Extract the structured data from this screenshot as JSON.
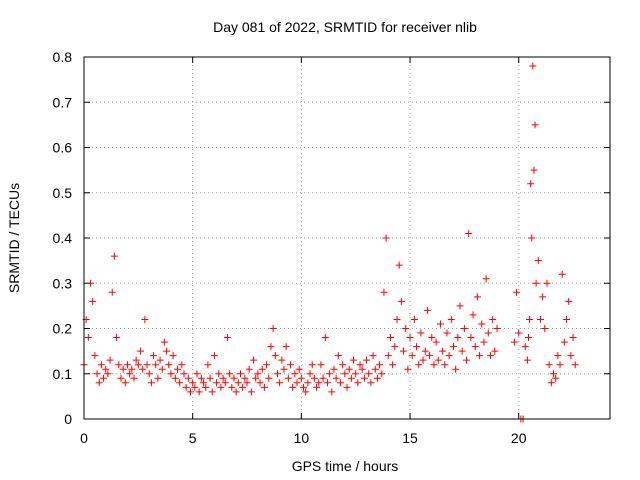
{
  "chart_data": {
    "type": "scatter",
    "title": "Day 081 of 2022, SRMTID for receiver nlib",
    "xlabel": "GPS time / hours",
    "ylabel": "SRMTID / TECUs",
    "xlim": [
      0,
      24.2
    ],
    "ylim": [
      0,
      0.8
    ],
    "x_ticks": [
      0,
      5,
      10,
      15,
      20
    ],
    "y_ticks": [
      0,
      0.1,
      0.2,
      0.3,
      0.4,
      0.5,
      0.6,
      0.7,
      0.8
    ],
    "x_tick_labels": [
      "0",
      "5",
      "10",
      "15",
      "20"
    ],
    "y_tick_labels": [
      "0",
      "0.1",
      "0.2",
      "0.3",
      "0.4",
      "0.5",
      "0.6",
      "0.7",
      "0.8"
    ],
    "grid": true,
    "marker": "+",
    "color": "#ff0000",
    "series": [
      {
        "name": "SRMTID",
        "x": [
          0.0,
          0.1,
          0.2,
          0.3,
          0.4,
          0.5,
          0.6,
          0.7,
          0.8,
          0.9,
          1.0,
          1.1,
          1.2,
          1.3,
          1.4,
          1.5,
          1.6,
          1.7,
          1.8,
          1.9,
          2.0,
          2.1,
          2.2,
          2.3,
          2.4,
          2.5,
          2.6,
          2.7,
          2.8,
          2.9,
          3.0,
          3.1,
          3.2,
          3.3,
          3.4,
          3.5,
          3.6,
          3.7,
          3.8,
          3.9,
          4.0,
          4.1,
          4.2,
          4.3,
          4.4,
          4.5,
          4.6,
          4.7,
          4.8,
          4.9,
          5.0,
          5.1,
          5.2,
          5.3,
          5.4,
          5.5,
          5.6,
          5.7,
          5.8,
          5.9,
          6.0,
          6.1,
          6.2,
          6.3,
          6.4,
          6.5,
          6.6,
          6.7,
          6.8,
          6.9,
          7.0,
          7.1,
          7.2,
          7.3,
          7.4,
          7.5,
          7.6,
          7.7,
          7.8,
          7.9,
          8.0,
          8.1,
          8.2,
          8.3,
          8.4,
          8.5,
          8.6,
          8.7,
          8.8,
          8.9,
          9.0,
          9.1,
          9.2,
          9.3,
          9.4,
          9.5,
          9.6,
          9.7,
          9.8,
          9.9,
          10.0,
          10.1,
          10.2,
          10.3,
          10.4,
          10.5,
          10.6,
          10.7,
          10.8,
          10.9,
          11.0,
          11.1,
          11.2,
          11.3,
          11.4,
          11.5,
          11.6,
          11.7,
          11.8,
          11.9,
          12.0,
          12.1,
          12.2,
          12.3,
          12.4,
          12.5,
          12.6,
          12.7,
          12.8,
          12.9,
          13.0,
          13.1,
          13.2,
          13.3,
          13.4,
          13.5,
          13.6,
          13.7,
          13.8,
          13.9,
          14.0,
          14.1,
          14.2,
          14.3,
          14.4,
          14.5,
          14.6,
          14.7,
          14.8,
          14.9,
          15.0,
          15.1,
          15.2,
          15.3,
          15.4,
          15.5,
          15.6,
          15.7,
          15.8,
          15.9,
          16.0,
          16.1,
          16.2,
          16.3,
          16.4,
          16.5,
          16.6,
          16.7,
          16.8,
          16.9,
          17.0,
          17.1,
          17.2,
          17.3,
          17.4,
          17.5,
          17.6,
          17.7,
          17.8,
          17.9,
          18.0,
          18.1,
          18.2,
          18.3,
          18.4,
          18.5,
          18.6,
          18.7,
          18.8,
          18.9,
          19.0,
          19.8,
          19.9,
          20.0,
          20.1,
          20.2,
          20.3,
          20.4,
          20.45,
          20.5,
          20.55,
          20.6,
          20.65,
          20.7,
          20.75,
          20.8,
          20.9,
          21.0,
          21.1,
          21.2,
          21.3,
          21.4,
          21.5,
          21.6,
          21.7,
          21.8,
          21.9,
          22.0,
          22.1,
          22.2,
          22.3,
          22.4,
          22.5,
          22.6
        ],
        "y": [
          0.12,
          0.22,
          0.18,
          0.3,
          0.26,
          0.14,
          0.1,
          0.08,
          0.12,
          0.09,
          0.11,
          0.1,
          0.13,
          0.28,
          0.36,
          0.18,
          0.12,
          0.09,
          0.11,
          0.08,
          0.12,
          0.1,
          0.11,
          0.09,
          0.13,
          0.12,
          0.15,
          0.11,
          0.22,
          0.12,
          0.1,
          0.08,
          0.14,
          0.12,
          0.09,
          0.13,
          0.11,
          0.17,
          0.15,
          0.12,
          0.1,
          0.14,
          0.09,
          0.11,
          0.08,
          0.12,
          0.1,
          0.07,
          0.09,
          0.06,
          0.08,
          0.07,
          0.1,
          0.06,
          0.09,
          0.08,
          0.07,
          0.12,
          0.09,
          0.06,
          0.14,
          0.08,
          0.1,
          0.07,
          0.09,
          0.08,
          0.18,
          0.1,
          0.07,
          0.09,
          0.06,
          0.08,
          0.1,
          0.07,
          0.09,
          0.08,
          0.11,
          0.06,
          0.13,
          0.09,
          0.1,
          0.08,
          0.11,
          0.07,
          0.12,
          0.09,
          0.16,
          0.2,
          0.14,
          0.1,
          0.08,
          0.13,
          0.11,
          0.16,
          0.09,
          0.12,
          0.07,
          0.1,
          0.08,
          0.11,
          0.09,
          0.07,
          0.06,
          0.08,
          0.1,
          0.12,
          0.09,
          0.07,
          0.08,
          0.12,
          0.09,
          0.18,
          0.08,
          0.1,
          0.06,
          0.11,
          0.09,
          0.14,
          0.08,
          0.12,
          0.1,
          0.07,
          0.11,
          0.09,
          0.13,
          0.1,
          0.08,
          0.12,
          0.11,
          0.09,
          0.13,
          0.1,
          0.08,
          0.14,
          0.11,
          0.09,
          0.12,
          0.1,
          0.28,
          0.4,
          0.14,
          0.18,
          0.12,
          0.16,
          0.22,
          0.34,
          0.26,
          0.15,
          0.2,
          0.11,
          0.18,
          0.14,
          0.22,
          0.16,
          0.12,
          0.19,
          0.13,
          0.15,
          0.24,
          0.14,
          0.18,
          0.12,
          0.17,
          0.13,
          0.21,
          0.15,
          0.12,
          0.19,
          0.14,
          0.22,
          0.16,
          0.11,
          0.18,
          0.25,
          0.15,
          0.2,
          0.13,
          0.41,
          0.18,
          0.23,
          0.16,
          0.27,
          0.14,
          0.21,
          0.17,
          0.31,
          0.19,
          0.14,
          0.22,
          0.15,
          0.2,
          0.17,
          0.28,
          0.19,
          0.0,
          0.0,
          0.16,
          0.13,
          0.18,
          0.22,
          0.52,
          0.4,
          0.78,
          0.55,
          0.65,
          0.3,
          0.35,
          0.22,
          0.27,
          0.2,
          0.3,
          0.12,
          0.08,
          0.1,
          0.09,
          0.14,
          0.12,
          0.32,
          0.17,
          0.22,
          0.26,
          0.14,
          0.18,
          0.12
        ]
      }
    ]
  }
}
